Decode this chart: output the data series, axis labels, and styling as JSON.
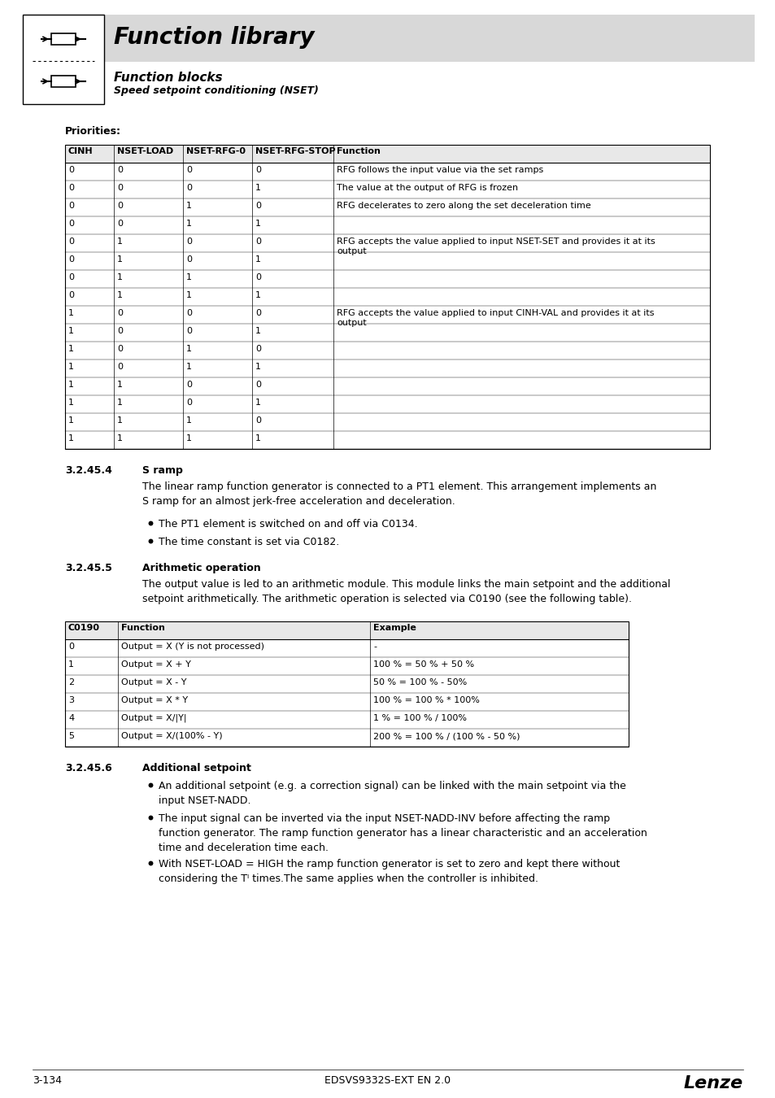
{
  "title": "Function library",
  "subtitle1": "Function blocks",
  "subtitle2": "Speed setpoint conditioning (NSET)",
  "bg_header": "#e0e0e0",
  "priorities_label": "Priorities:",
  "table1_headers": [
    "CINH",
    "NSET-LOAD",
    "NSET-RFG-0",
    "NSET-RFG-STOP",
    "Function"
  ],
  "table1_rows": [
    [
      "0",
      "0",
      "0",
      "0",
      "RFG follows the input value via the set ramps"
    ],
    [
      "0",
      "0",
      "0",
      "1",
      "The value at the output of RFG is frozen"
    ],
    [
      "0",
      "0",
      "1",
      "0",
      "RFG decelerates to zero along the set deceleration time"
    ],
    [
      "0",
      "0",
      "1",
      "1",
      ""
    ],
    [
      "0",
      "1",
      "0",
      "0",
      "RFG accepts the value applied to input NSET-SET and provides it at its output"
    ],
    [
      "0",
      "1",
      "0",
      "1",
      ""
    ],
    [
      "0",
      "1",
      "1",
      "0",
      ""
    ],
    [
      "0",
      "1",
      "1",
      "1",
      ""
    ],
    [
      "1",
      "0",
      "0",
      "0",
      "RFG accepts the value applied to input CINH-VAL and provides it at its output"
    ],
    [
      "1",
      "0",
      "0",
      "1",
      ""
    ],
    [
      "1",
      "0",
      "1",
      "0",
      ""
    ],
    [
      "1",
      "0",
      "1",
      "1",
      ""
    ],
    [
      "1",
      "1",
      "0",
      "0",
      ""
    ],
    [
      "1",
      "1",
      "0",
      "1",
      ""
    ],
    [
      "1",
      "1",
      "1",
      "0",
      ""
    ],
    [
      "1",
      "1",
      "1",
      "1",
      ""
    ]
  ],
  "section_3245_4": "3.2.45.4",
  "section_3245_4_title": "S ramp",
  "section_3245_4_body": "The linear ramp function generator is connected to a PT1 element. This arrangement implements an\nS ramp for an almost jerk-free acceleration and deceleration.",
  "section_3245_4_bullets": [
    "The PT1 element is switched on and off via C0134.",
    "The time constant is set via C0182."
  ],
  "section_3245_5": "3.2.45.5",
  "section_3245_5_title": "Arithmetic operation",
  "section_3245_5_body": "The output value is led to an arithmetic module. This module links the main setpoint and the additional\nsetpoint arithmetically. The arithmetic operation is selected via C0190 (see the following table).",
  "table2_headers": [
    "C0190",
    "Function",
    "Example"
  ],
  "table2_rows": [
    [
      "0",
      "Output = X (Y is not processed)",
      "-"
    ],
    [
      "1",
      "Output = X + Y",
      "100 % = 50 % + 50 %"
    ],
    [
      "2",
      "Output = X - Y",
      "50 % = 100 % - 50%"
    ],
    [
      "3",
      "Output = X * Y",
      "100 % = 100 % * 100%"
    ],
    [
      "4",
      "Output = X/|Y|",
      "1 % = 100 % / 100%"
    ],
    [
      "5",
      "Output = X/(100% - Y)",
      "200 % = 100 % / (100 % - 50 %)"
    ]
  ],
  "section_3245_6": "3.2.45.6",
  "section_3245_6_title": "Additional setpoint",
  "section_3245_6_bullets": [
    "An additional setpoint (e.g. a correction signal) can be linked with the main setpoint via the\ninput NSET-NADD.",
    "The input signal can be inverted via the input NSET-NADD-INV before affecting the ramp\nfunction generator. The ramp function generator has a linear characteristic and an acceleration\ntime and deceleration time each.",
    "With NSET-LOAD = HIGH the ramp function generator is set to zero and kept there without\nconsidering the Tᴵ times.The same applies when the controller is inhibited."
  ],
  "footer_left": "3-134",
  "footer_center": "EDSVS9332S-EXT EN 2.0",
  "footer_right": "Lenze"
}
